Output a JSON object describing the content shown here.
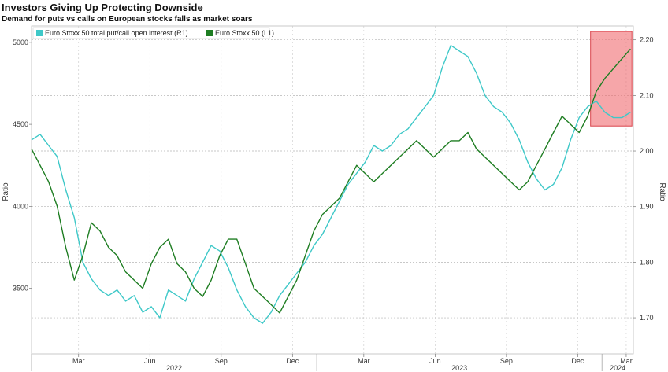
{
  "title": "Investors Giving Up Protecting Downside",
  "subtitle": "Demand for puts vs calls on European stocks falls as market soars",
  "chart_data": {
    "type": "line",
    "left_axis": {
      "label": "Ratio",
      "ticks": [
        "5000",
        "4500",
        "4000",
        "3500"
      ],
      "range": [
        3100,
        5100
      ]
    },
    "right_axis": {
      "label": "Ratio",
      "ticks": [
        "2.20",
        "2.10",
        "2.00",
        "1.90",
        "1.80",
        "1.70"
      ],
      "range": [
        1.635,
        2.225
      ]
    },
    "x_months": [
      "Mar",
      "Jun",
      "Sep",
      "Dec",
      "Mar",
      "Jun",
      "Sep",
      "Dec",
      "Mar"
    ],
    "x_years": [
      "2022",
      "2023",
      "2024"
    ],
    "grid": true,
    "legend_position": "top-left",
    "series": [
      {
        "name": "Euro Stoxx 50 total put/call open interest (R1)",
        "axis": "right",
        "color": "#3ec8c8",
        "x": [
          0.0,
          0.03,
          0.06,
          0.09,
          0.12,
          0.15,
          0.18,
          0.21,
          0.24,
          0.27,
          0.3,
          0.33,
          0.36,
          0.39,
          0.42,
          0.45,
          0.48,
          0.51,
          0.54,
          0.57,
          0.6,
          0.63,
          0.66,
          0.69,
          0.72,
          0.75,
          0.78,
          0.81,
          0.84,
          0.87,
          0.9,
          0.93,
          0.96,
          0.99,
          1.02,
          1.05,
          1.08,
          1.11,
          1.14,
          1.17,
          1.2,
          1.23,
          1.26,
          1.29,
          1.32,
          1.35,
          1.38,
          1.41,
          1.44,
          1.47,
          1.5,
          1.53,
          1.56,
          1.59,
          1.62,
          1.65,
          1.68,
          1.71,
          1.74,
          1.77,
          1.8,
          1.83,
          1.86,
          1.89,
          1.92,
          1.95,
          1.98,
          2.01,
          2.04,
          2.07,
          2.1
        ],
        "values": [
          2.02,
          2.03,
          2.01,
          1.99,
          1.93,
          1.88,
          1.8,
          1.77,
          1.75,
          1.74,
          1.75,
          1.73,
          1.74,
          1.71,
          1.72,
          1.7,
          1.75,
          1.74,
          1.73,
          1.77,
          1.8,
          1.83,
          1.82,
          1.79,
          1.75,
          1.72,
          1.7,
          1.69,
          1.71,
          1.74,
          1.76,
          1.78,
          1.8,
          1.83,
          1.85,
          1.88,
          1.91,
          1.94,
          1.96,
          1.98,
          2.01,
          2.0,
          2.01,
          2.03,
          2.04,
          2.06,
          2.08,
          2.1,
          2.15,
          2.19,
          2.18,
          2.17,
          2.14,
          2.1,
          2.08,
          2.07,
          2.05,
          2.02,
          1.98,
          1.95,
          1.93,
          1.94,
          1.97,
          2.02,
          2.06,
          2.08,
          2.09,
          2.07,
          2.06,
          2.06,
          2.07
        ]
      },
      {
        "name": "Euro Stoxx 50 (L1)",
        "axis": "left",
        "color": "#1e7d22",
        "x": [
          0.0,
          0.03,
          0.06,
          0.09,
          0.12,
          0.15,
          0.18,
          0.21,
          0.24,
          0.27,
          0.3,
          0.33,
          0.36,
          0.39,
          0.42,
          0.45,
          0.48,
          0.51,
          0.54,
          0.57,
          0.6,
          0.63,
          0.66,
          0.69,
          0.72,
          0.75,
          0.78,
          0.81,
          0.84,
          0.87,
          0.9,
          0.93,
          0.96,
          0.99,
          1.02,
          1.05,
          1.08,
          1.11,
          1.14,
          1.17,
          1.2,
          1.23,
          1.26,
          1.29,
          1.32,
          1.35,
          1.38,
          1.41,
          1.44,
          1.47,
          1.5,
          1.53,
          1.56,
          1.59,
          1.62,
          1.65,
          1.68,
          1.71,
          1.74,
          1.77,
          1.8,
          1.83,
          1.86,
          1.89,
          1.92,
          1.95,
          1.98,
          2.01,
          2.04,
          2.07,
          2.1
        ],
        "values": [
          4350,
          4250,
          4150,
          4000,
          3750,
          3550,
          3700,
          3900,
          3850,
          3750,
          3700,
          3600,
          3550,
          3500,
          3650,
          3750,
          3800,
          3650,
          3600,
          3500,
          3450,
          3550,
          3700,
          3800,
          3800,
          3650,
          3500,
          3450,
          3400,
          3350,
          3450,
          3550,
          3700,
          3850,
          3950,
          4000,
          4050,
          4150,
          4250,
          4200,
          4150,
          4200,
          4250,
          4300,
          4350,
          4400,
          4350,
          4300,
          4350,
          4400,
          4400,
          4450,
          4350,
          4300,
          4250,
          4200,
          4150,
          4100,
          4150,
          4250,
          4350,
          4450,
          4550,
          4500,
          4450,
          4550,
          4700,
          4780,
          4840,
          4900,
          4960
        ]
      }
    ],
    "highlight_box": {
      "x_from": 1.96,
      "x_to": 2.105,
      "y_from": 2.045,
      "y_to": 2.215,
      "axis": "right",
      "color": "#f06a70"
    }
  }
}
